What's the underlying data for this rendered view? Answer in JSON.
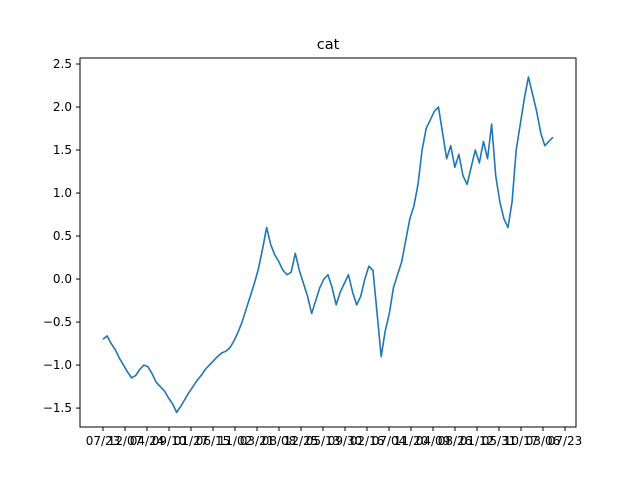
{
  "chart_data": {
    "type": "line",
    "title": "cat",
    "xlabel": "",
    "ylabel": "",
    "ylim": [
      -1.72,
      2.57
    ],
    "y_ticks": [
      -1.5,
      -1.0,
      -0.5,
      0.0,
      0.5,
      1.0,
      1.5,
      2.0,
      2.5
    ],
    "y_tick_labels": [
      "−1.5",
      "−1.0",
      "−0.5",
      "0.0",
      "0.5",
      "1.0",
      "1.5",
      "2.0",
      "2.5"
    ],
    "x_tick_labels": [
      "07/23",
      "12/07",
      "04/24",
      "09/10",
      "01/27",
      "06/15",
      "11/02",
      "03/21",
      "08/08",
      "12/25",
      "05/13",
      "09/30",
      "02/16",
      "07/04",
      "11/20",
      "04/09",
      "08/26",
      "01/12",
      "05/31",
      "10/17",
      "03/06",
      "07/23"
    ],
    "series": [
      {
        "color": "#1f77b4",
        "x_index_range": [
          0,
          1000
        ],
        "values": [
          -0.7,
          -0.66,
          -0.75,
          -0.82,
          -0.92,
          -1.0,
          -1.08,
          -1.15,
          -1.12,
          -1.05,
          -1.0,
          -1.02,
          -1.1,
          -1.2,
          -1.25,
          -1.3,
          -1.38,
          -1.45,
          -1.55,
          -1.48,
          -1.4,
          -1.32,
          -1.25,
          -1.18,
          -1.12,
          -1.05,
          -1.0,
          -0.95,
          -0.9,
          -0.86,
          -0.84,
          -0.8,
          -0.72,
          -0.62,
          -0.5,
          -0.35,
          -0.2,
          -0.05,
          0.12,
          0.35,
          0.6,
          0.4,
          0.28,
          0.2,
          0.1,
          0.05,
          0.08,
          0.3,
          0.1,
          -0.05,
          -0.2,
          -0.4,
          -0.25,
          -0.1,
          0.0,
          0.05,
          -0.1,
          -0.3,
          -0.15,
          -0.05,
          0.05,
          -0.15,
          -0.3,
          -0.2,
          0.0,
          0.15,
          0.1,
          -0.4,
          -0.9,
          -0.6,
          -0.4,
          -0.1,
          0.05,
          0.2,
          0.45,
          0.7,
          0.85,
          1.1,
          1.5,
          1.75,
          1.85,
          1.95,
          2.0,
          1.7,
          1.4,
          1.55,
          1.3,
          1.45,
          1.2,
          1.1,
          1.3,
          1.5,
          1.35,
          1.6,
          1.4,
          1.8,
          1.2,
          0.9,
          0.7,
          0.6,
          0.9,
          1.5,
          1.8,
          2.1,
          2.35,
          2.15,
          1.95,
          1.7,
          1.55,
          1.6,
          1.65
        ]
      }
    ]
  }
}
